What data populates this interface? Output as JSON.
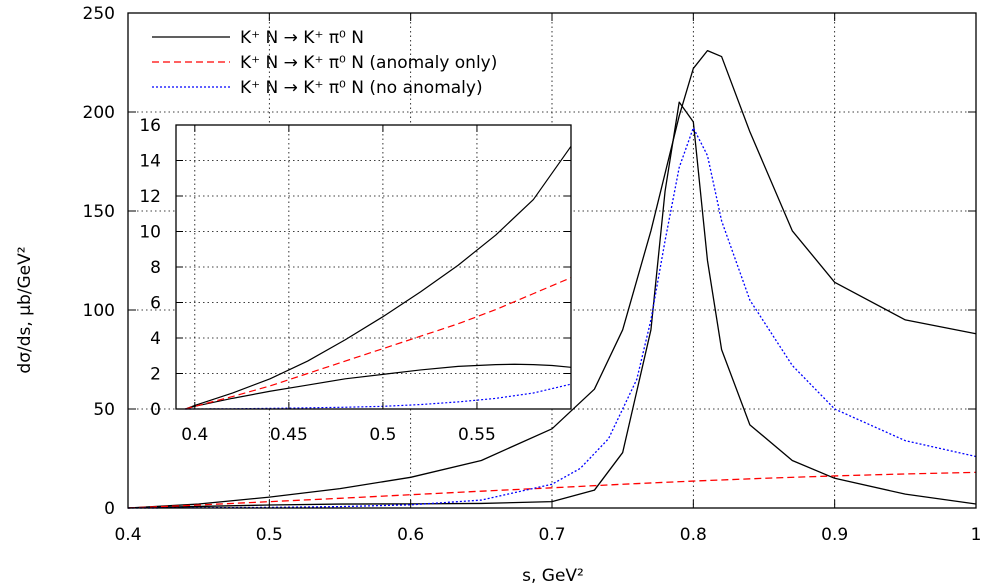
{
  "chart_data": {
    "type": "line",
    "xlabel": "s, GeV²",
    "ylabel": "dσ/ds, μb/GeV²",
    "xlim": [
      0.4,
      1.0
    ],
    "ylim": [
      0,
      250
    ],
    "x_ticks": [
      "0.4",
      "0.5",
      "0.6",
      "0.7",
      "0.8",
      "0.9",
      "1"
    ],
    "y_ticks": [
      "0",
      "50",
      "100",
      "150",
      "200",
      "250"
    ],
    "grid": true,
    "legend_position": "top-left",
    "legend": [
      {
        "label": "K⁺ N → K⁺ π⁰ N",
        "color": "#000000",
        "style": "solid"
      },
      {
        "label": "K⁺ N → K⁺ π⁰ N (anomaly only)",
        "color": "#ff0000",
        "style": "dashed"
      },
      {
        "label": "K⁺ N → K⁺ π⁰ N (no anomaly)",
        "color": "#0000ff",
        "style": "dotted"
      }
    ],
    "series": [
      {
        "color": "#000000",
        "style": "solid",
        "x": [
          0.4,
          0.45,
          0.5,
          0.55,
          0.6,
          0.65,
          0.7,
          0.73,
          0.75,
          0.77,
          0.79,
          0.8,
          0.81,
          0.82,
          0.84,
          0.87,
          0.9,
          0.95,
          1.0
        ],
        "y": [
          0,
          2.0,
          5.5,
          9.8,
          15.5,
          24,
          40,
          60,
          90,
          140,
          198,
          222,
          231,
          228,
          190,
          140,
          114,
          95,
          88
        ]
      },
      {
        "color": "#000000",
        "style": "solid",
        "x": [
          0.4,
          0.45,
          0.5,
          0.55,
          0.6,
          0.65,
          0.7,
          0.73,
          0.75,
          0.77,
          0.78,
          0.79,
          0.8,
          0.81,
          0.82,
          0.84,
          0.87,
          0.9,
          0.95,
          1.0
        ],
        "y": [
          0,
          0.8,
          1.5,
          2.0,
          2.1,
          2.3,
          3.2,
          9,
          28,
          90,
          160,
          205,
          195,
          125,
          80,
          42,
          24,
          15,
          7,
          2
        ]
      },
      {
        "color": "#ff0000",
        "style": "dashed",
        "x": [
          0.4,
          0.45,
          0.5,
          0.55,
          0.6,
          0.65,
          0.7,
          0.75,
          0.8,
          0.85,
          0.9,
          0.95,
          1.0
        ],
        "y": [
          0,
          1.5,
          3.2,
          4.9,
          6.7,
          8.5,
          10.2,
          12.0,
          13.6,
          15.0,
          16.2,
          17.2,
          18.0
        ]
      },
      {
        "color": "#0000ff",
        "style": "dotted",
        "x": [
          0.4,
          0.45,
          0.5,
          0.55,
          0.6,
          0.65,
          0.7,
          0.72,
          0.74,
          0.76,
          0.77,
          0.78,
          0.79,
          0.8,
          0.81,
          0.82,
          0.84,
          0.87,
          0.9,
          0.95,
          1.0
        ],
        "y": [
          0,
          0.1,
          0.3,
          0.7,
          1.6,
          4,
          12,
          20,
          35,
          65,
          95,
          135,
          172,
          192,
          178,
          145,
          105,
          72,
          50,
          34,
          26
        ]
      }
    ],
    "inset": {
      "xlim": [
        0.39,
        0.6
      ],
      "ylim": [
        0,
        16
      ],
      "x_ticks": [
        "0.4",
        "0.45",
        "0.5",
        "0.55"
      ],
      "y_ticks": [
        "0",
        "2",
        "4",
        "6",
        "8",
        "10",
        "12",
        "14",
        "16"
      ],
      "grid": true,
      "series": [
        {
          "color": "#000000",
          "style": "solid",
          "x": [
            0.395,
            0.4,
            0.42,
            0.44,
            0.46,
            0.48,
            0.5,
            0.52,
            0.54,
            0.56,
            0.58,
            0.6
          ],
          "y": [
            0,
            0.2,
            0.9,
            1.7,
            2.7,
            3.9,
            5.2,
            6.6,
            8.1,
            9.8,
            11.8,
            14.8
          ]
        },
        {
          "color": "#000000",
          "style": "solid",
          "x": [
            0.395,
            0.4,
            0.42,
            0.44,
            0.46,
            0.48,
            0.5,
            0.52,
            0.54,
            0.56,
            0.57,
            0.58,
            0.59,
            0.6
          ],
          "y": [
            0,
            0.15,
            0.6,
            1.0,
            1.35,
            1.7,
            1.95,
            2.2,
            2.4,
            2.5,
            2.52,
            2.5,
            2.45,
            2.35
          ]
        },
        {
          "color": "#ff0000",
          "style": "dashed",
          "x": [
            0.395,
            0.4,
            0.42,
            0.44,
            0.46,
            0.48,
            0.5,
            0.52,
            0.54,
            0.56,
            0.58,
            0.6
          ],
          "y": [
            0,
            0.15,
            0.7,
            1.3,
            2.0,
            2.7,
            3.4,
            4.1,
            4.8,
            5.6,
            6.5,
            7.4
          ]
        },
        {
          "color": "#0000ff",
          "style": "dotted",
          "x": [
            0.395,
            0.42,
            0.45,
            0.48,
            0.5,
            0.52,
            0.54,
            0.56,
            0.58,
            0.6
          ],
          "y": [
            0,
            0.01,
            0.05,
            0.1,
            0.15,
            0.25,
            0.4,
            0.6,
            0.9,
            1.4
          ]
        }
      ]
    }
  }
}
